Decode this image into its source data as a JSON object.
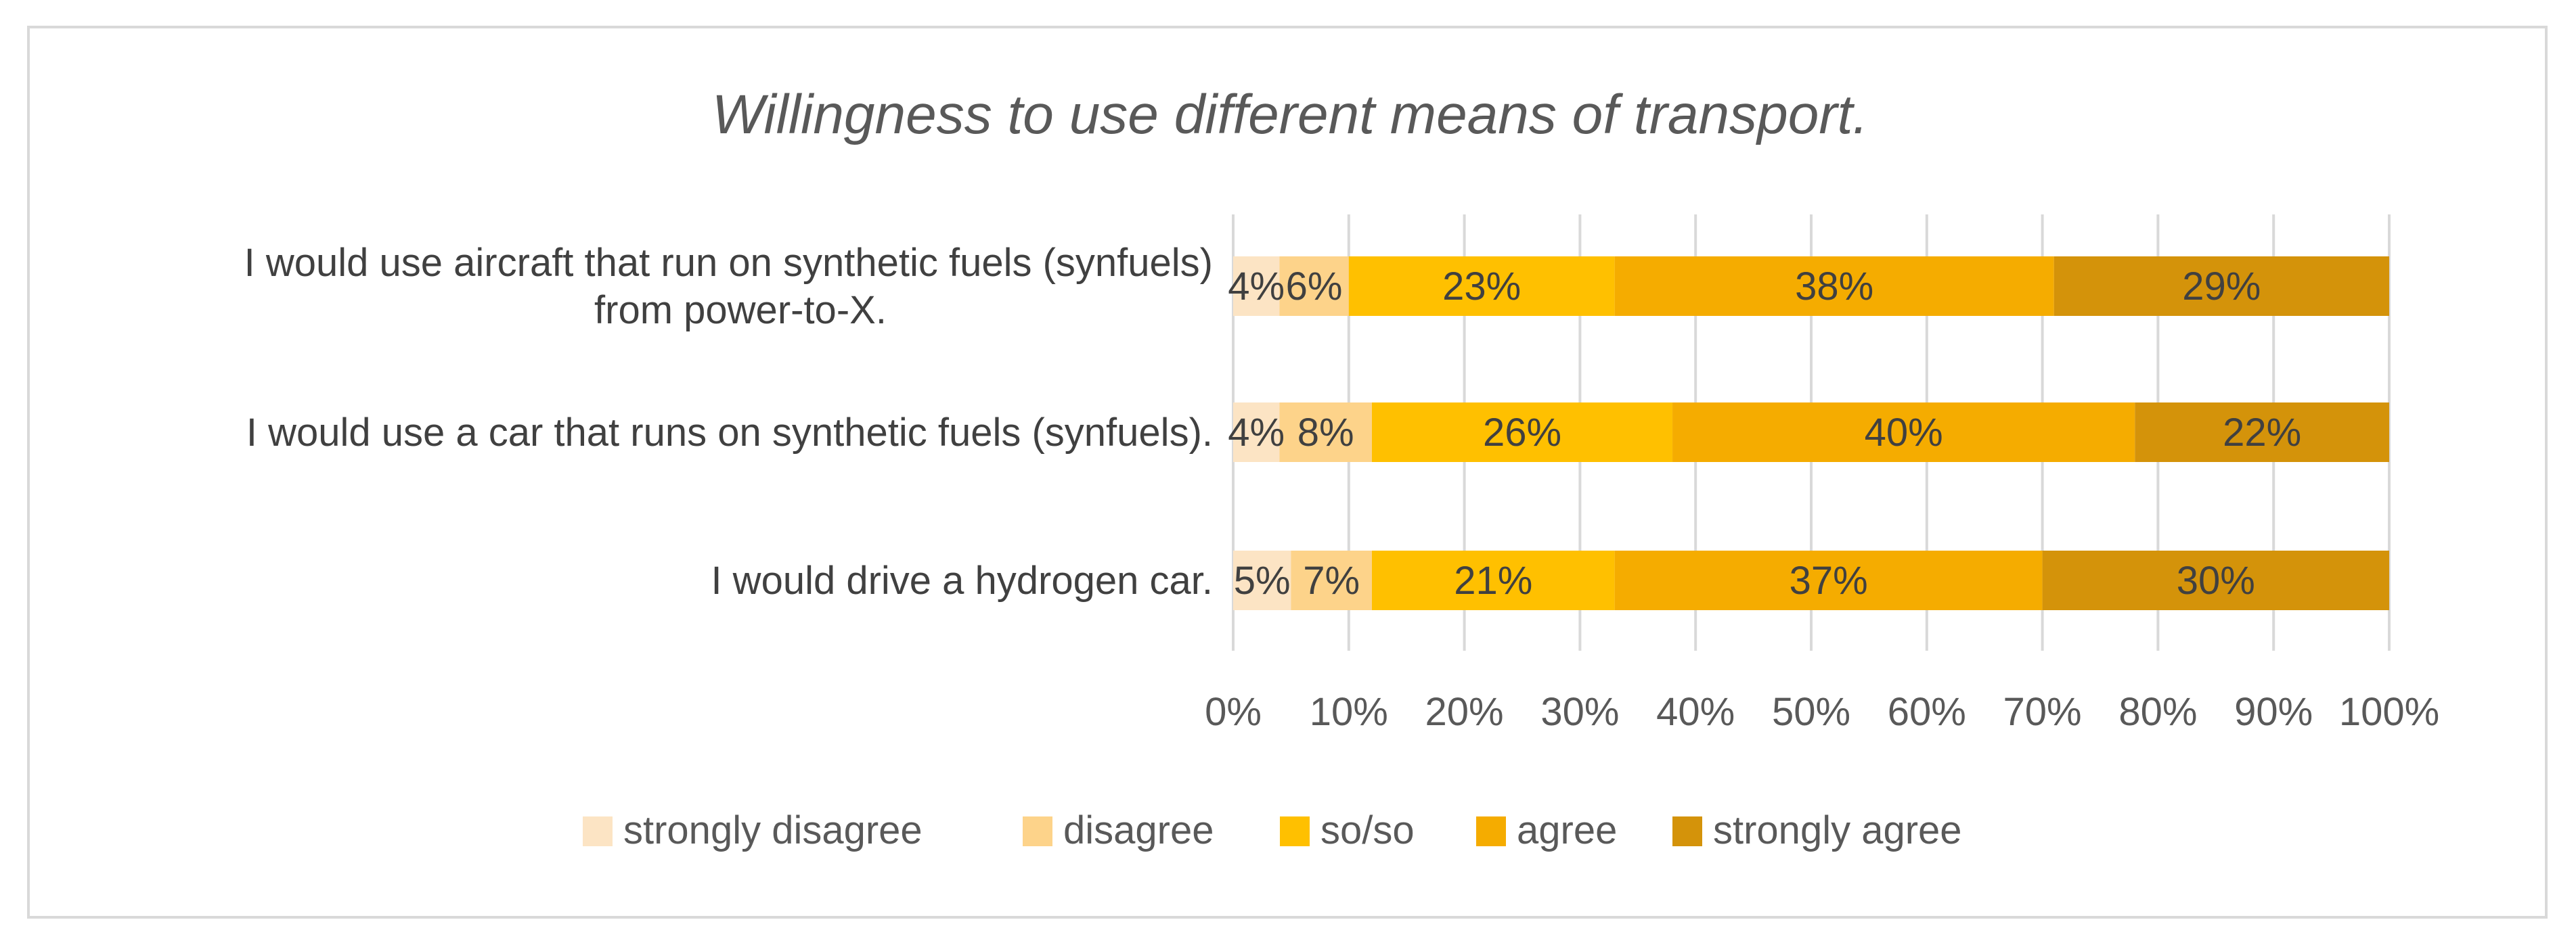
{
  "chart_data": {
    "type": "bar",
    "orientation": "horizontal",
    "stacked": "percent",
    "title": "Willingness to use different means of transport.",
    "categories": [
      [
        "I would use aircraft that run on synthetic fuels (synfuels)",
        "from power-to-X."
      ],
      [
        "I would use a car that runs on synthetic fuels (synfuels)."
      ],
      [
        "I would drive a hydrogen car."
      ]
    ],
    "series": [
      {
        "name": "strongly disagree",
        "color": "#fce4c4",
        "values": [
          4,
          4,
          5
        ],
        "labels": [
          "4%",
          "4%",
          "5%"
        ]
      },
      {
        "name": "disagree",
        "color": "#fdd38a",
        "values": [
          6,
          8,
          7
        ],
        "labels": [
          "6%",
          "8%",
          "7%"
        ]
      },
      {
        "name": "so/so",
        "color": "#ffc000",
        "values": [
          23,
          26,
          21
        ],
        "labels": [
          "23%",
          "26%",
          "21%"
        ]
      },
      {
        "name": "agree",
        "color": "#f5ac00",
        "values": [
          38,
          40,
          37
        ],
        "labels": [
          "38%",
          "40%",
          "37%"
        ]
      },
      {
        "name": "strongly agree",
        "color": "#d4930a",
        "values": [
          29,
          22,
          30
        ],
        "labels": [
          "29%",
          "22%",
          "30%"
        ]
      }
    ],
    "xlim": [
      0,
      100
    ],
    "xticks": [
      "0%",
      "10%",
      "20%",
      "30%",
      "40%",
      "50%",
      "60%",
      "70%",
      "80%",
      "90%",
      "100%"
    ],
    "xlabel": "",
    "ylabel": "",
    "grid": true,
    "legend": "bottom"
  }
}
